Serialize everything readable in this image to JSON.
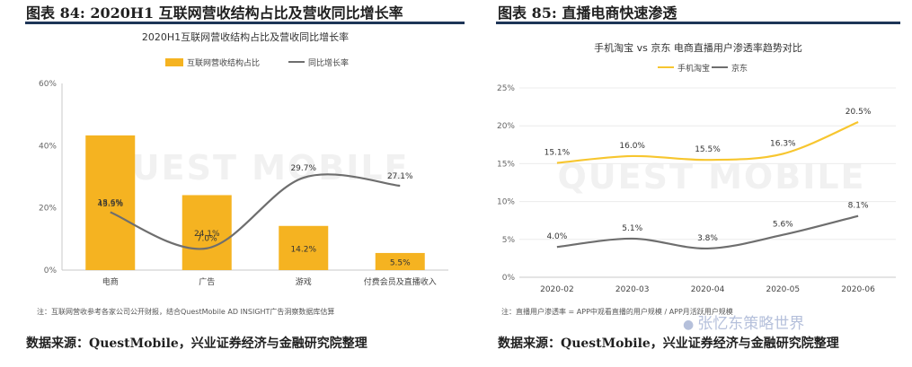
{
  "figures": [
    {
      "title": "图表 84:  2020H1 互联网营收结构占比及营收同比增长率",
      "source": "数据来源：QuestMobile，兴业证券经济与金融研究院整理"
    },
    {
      "title": "图表 85:  直播电商快速渗透",
      "source": "数据来源：QuestMobile，兴业证券经济与金融研究院整理"
    }
  ],
  "watermark": "QUEST MOBILE",
  "account_watermark": "张忆东策略世界",
  "colors": {
    "bar": "#f5b321",
    "line_gray": "#6e6e6e",
    "line_gold": "#f7c62f",
    "rule": "#1d3557"
  },
  "chart_data": [
    {
      "type": "bar",
      "title": "2020H1互联网营收结构占比及营收同比增长率",
      "categories": [
        "电商",
        "广告",
        "游戏",
        "付费会员及直播收入"
      ],
      "series": [
        {
          "name": "互联网营收结构占比",
          "type": "bar",
          "values": [
            43.3,
            24.1,
            14.2,
            5.5
          ],
          "labels": [
            "43.3%",
            "24.1%",
            "14.2%",
            "5.5%"
          ]
        },
        {
          "name": "同比增长率",
          "type": "line",
          "values": [
            18.6,
            7.0,
            29.7,
            27.1
          ],
          "labels": [
            "18.6%",
            "7.0%",
            "29.7%",
            "27.1%"
          ]
        }
      ],
      "ylim": [
        0,
        60
      ],
      "yticks": [
        "0%",
        "20%",
        "40%",
        "60%"
      ],
      "legend": "top",
      "note": "注：互联网营收参考各家公司公开财报，结合QuestMobile AD INSIGHT广告洞察数据库估算"
    },
    {
      "type": "line",
      "title": "手机淘宝 vs 京东 电商直播用户渗透率趋势对比",
      "categories": [
        "2020-02",
        "2020-03",
        "2020-04",
        "2020-05",
        "2020-06"
      ],
      "series": [
        {
          "name": "手机淘宝",
          "values": [
            15.1,
            16.0,
            15.5,
            16.3,
            20.5
          ],
          "labels": [
            "15.1%",
            "16.0%",
            "15.5%",
            "16.3%",
            "20.5%"
          ]
        },
        {
          "name": "京东",
          "values": [
            4.0,
            5.1,
            3.8,
            5.6,
            8.1
          ],
          "labels": [
            "4.0%",
            "5.1%",
            "3.8%",
            "5.6%",
            "8.1%"
          ]
        }
      ],
      "ylim": [
        0,
        25
      ],
      "yticks": [
        "0%",
        "5%",
        "10%",
        "15%",
        "20%",
        "25%"
      ],
      "legend": "top",
      "note": "注：直播用户渗透率 = APP中观看直播的用户规模 / APP月活跃用户规模"
    }
  ]
}
